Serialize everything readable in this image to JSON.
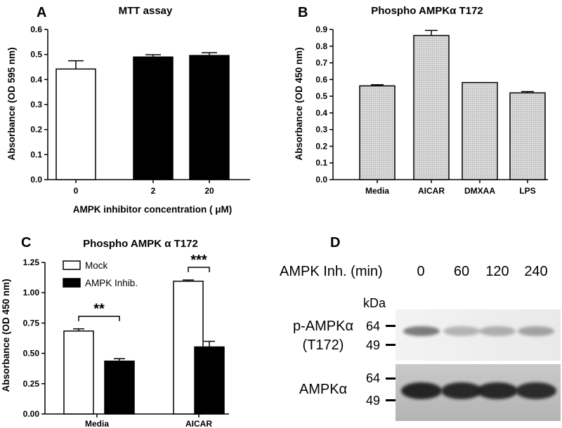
{
  "chart_data": [
    {
      "panel": "A",
      "type": "bar",
      "title": "MTT assay",
      "xlabel": "AMPK inhibitor concentration (  μM)",
      "ylabel": "Absorbance (OD 595 nm)",
      "categories": [
        "0",
        "2",
        "20"
      ],
      "values": [
        0.442,
        0.49,
        0.496
      ],
      "errors": [
        0.033,
        0.009,
        0.011
      ],
      "fills": [
        "#ffffff",
        "#000000",
        "#000000"
      ],
      "ylim": [
        0,
        0.6
      ],
      "yticks": [
        "0.0",
        "0.1",
        "0.2",
        "0.3",
        "0.4",
        "0.5",
        "0.6"
      ]
    },
    {
      "panel": "B",
      "type": "bar",
      "title": "Phospho AMPKα T172",
      "xlabel": "",
      "ylabel": "Absorbance (OD 450 nm)",
      "categories": [
        "Media",
        "AICAR",
        "DMXAA",
        "LPS"
      ],
      "values": [
        0.562,
        0.864,
        0.582,
        0.52
      ],
      "errors": [
        0.007,
        0.03,
        0.0,
        0.008
      ],
      "fill": "#d4d4d4",
      "ylim": [
        0,
        0.9
      ],
      "yticks": [
        "0.0",
        "0.1",
        "0.2",
        "0.3",
        "0.4",
        "0.5",
        "0.6",
        "0.7",
        "0.8",
        "0.9"
      ]
    },
    {
      "panel": "C",
      "type": "bar",
      "title": "Phospho AMPK α  T172",
      "xlabel": "",
      "ylabel": "Absorbance (OD 450 nm)",
      "categories": [
        "Media",
        "AICAR"
      ],
      "series": [
        {
          "name": "Mock",
          "values": [
            0.684,
            1.095
          ],
          "errors": [
            0.018,
            0.01
          ],
          "fill": "#ffffff"
        },
        {
          "name": "AMPK Inhib.",
          "values": [
            0.436,
            0.553
          ],
          "errors": [
            0.02,
            0.046
          ],
          "fill": "#000000"
        }
      ],
      "significance": [
        "**",
        "***"
      ],
      "ylim": [
        0,
        1.25
      ],
      "yticks": [
        "0.00",
        "0.25",
        "0.50",
        "0.75",
        "1.00",
        "1.25"
      ]
    }
  ],
  "western_blot": {
    "panel": "D",
    "header_label": "AMPK Inh. (min)",
    "timepoints": [
      "0",
      "60",
      "120",
      "240"
    ],
    "kda_label": "kDa",
    "rows": [
      {
        "label_line1": "p-AMPKα",
        "label_line2": "(T172)",
        "markers": [
          "64",
          "49"
        ],
        "band_intensity": [
          0.55,
          0.28,
          0.3,
          0.35
        ]
      },
      {
        "label_line1": "AMPKα",
        "label_line2": "",
        "markers": [
          "64",
          "49"
        ],
        "band_intensity": [
          0.95,
          0.92,
          0.93,
          0.9
        ]
      }
    ]
  }
}
